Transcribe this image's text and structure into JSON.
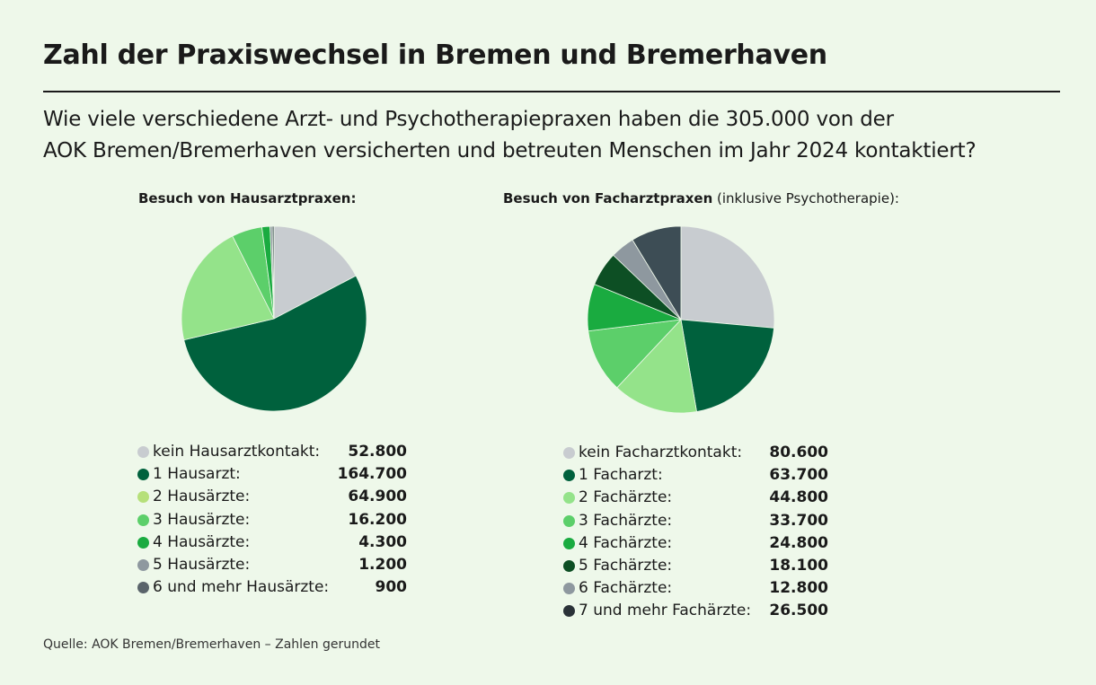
{
  "title": "Zahl der Praxiswechsel in Bremen und Bremerhaven",
  "subtitle": [
    "Wie viele verschiedene Arzt- und Psychotherapiepraxen haben die 305.000 von der",
    "AOK Bremen/Bremerhaven versicherten und betreuten Menschen im Jahr 2024 kontaktiert?"
  ],
  "source": "Quelle: AOK Bremen/Bremerhaven – Zahlen gerundet",
  "chart_data": [
    {
      "type": "pie",
      "title": "Besuch von Hausarztpraxen:",
      "title_suffix": "",
      "categories": [
        "kein Hausarztkontakt:",
        "1 Hausarzt:",
        "2 Hausärzte:",
        "3 Hausärzte:",
        "4 Hausärzte:",
        "5 Hausärzte:",
        "6 und mehr Hausärzte:"
      ],
      "values": [
        52800,
        164700,
        64900,
        16200,
        4300,
        1200,
        900
      ],
      "labels": [
        "52.800",
        "164.700",
        "64.900",
        "16.200",
        "4.300",
        "1.200",
        "900"
      ],
      "colors": [
        "#c8ccd0",
        "#00613d",
        "#94e38a",
        "#5ccf6a",
        "#1aab40",
        "#8e989f",
        "#3d4d55"
      ],
      "legend_colors": [
        "#c8ccd0",
        "#00613d",
        "#b6e07a",
        "#5ccf6a",
        "#1aab40",
        "#8e989f",
        "#5a646b"
      ]
    },
    {
      "type": "pie",
      "title": "Besuch von Facharztpraxen",
      "title_suffix": " (inklusive Psychotherapie):",
      "categories": [
        "kein Facharztkontakt:",
        "1 Facharzt:",
        "2 Fachärzte:",
        "3 Fachärzte:",
        "4 Fachärzte:",
        "5 Fachärzte:",
        "6 Fachärzte:",
        "7 und mehr Fachärzte:"
      ],
      "values": [
        80600,
        63700,
        44800,
        33700,
        24800,
        18100,
        12800,
        26500
      ],
      "labels": [
        "80.600",
        "63.700",
        "44.800",
        "33.700",
        "24.800",
        "18.100",
        "12.800",
        "26.500"
      ],
      "colors": [
        "#c8ccd0",
        "#00613d",
        "#94e38a",
        "#5ccf6a",
        "#1aab40",
        "#0d4f24",
        "#8e989f",
        "#3d4d55"
      ],
      "legend_colors": [
        "#c8ccd0",
        "#00613d",
        "#94e38a",
        "#5ccf6a",
        "#1aab40",
        "#0d4f24",
        "#8e989f",
        "#2a3238"
      ]
    }
  ]
}
